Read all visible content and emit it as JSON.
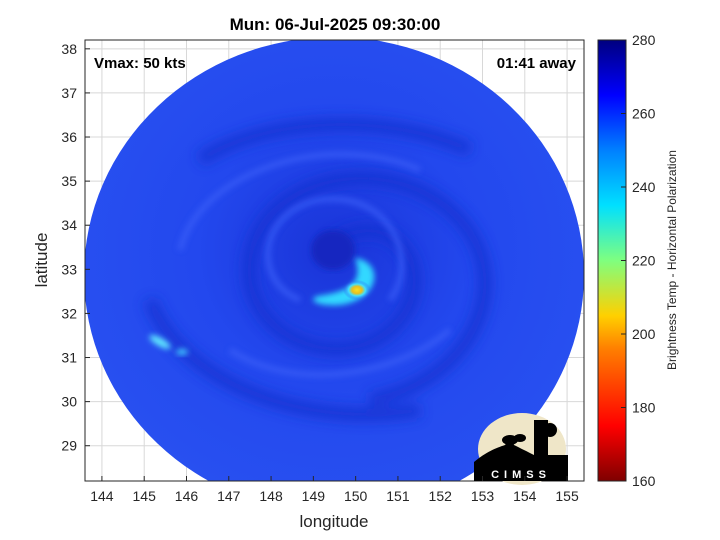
{
  "title": "Mun: 06-Jul-2025 09:30:00",
  "annotations": {
    "vmax": "Vmax: 50 kts",
    "time_away": "01:41 away"
  },
  "axes": {
    "xlabel": "longitude",
    "ylabel": "latitude",
    "xticks": [
      "144",
      "145",
      "146",
      "147",
      "148",
      "149",
      "150",
      "151",
      "152",
      "153",
      "154",
      "155"
    ],
    "yticks": [
      "29",
      "30",
      "31",
      "32",
      "33",
      "34",
      "35",
      "36",
      "37",
      "38"
    ],
    "xlim": [
      143.6,
      155.4
    ],
    "ylim": [
      28.2,
      38.2
    ],
    "grid": true
  },
  "colorbar": {
    "label": "Brightness Temp - Horizontal Polarization",
    "ticks": [
      "280",
      "260",
      "240",
      "220",
      "200",
      "180",
      "160"
    ],
    "range": [
      160,
      280
    ],
    "colormap": "jet"
  },
  "image": {
    "description_icon": "microwave-swath",
    "center_lon": 149.8,
    "center_lat": 33.0
  },
  "logo": {
    "text": "CIMSS"
  },
  "colors": {
    "background_blue": "#1f3fe0",
    "deep_blue": "#1028c8",
    "warm_core": "#f0d010"
  }
}
